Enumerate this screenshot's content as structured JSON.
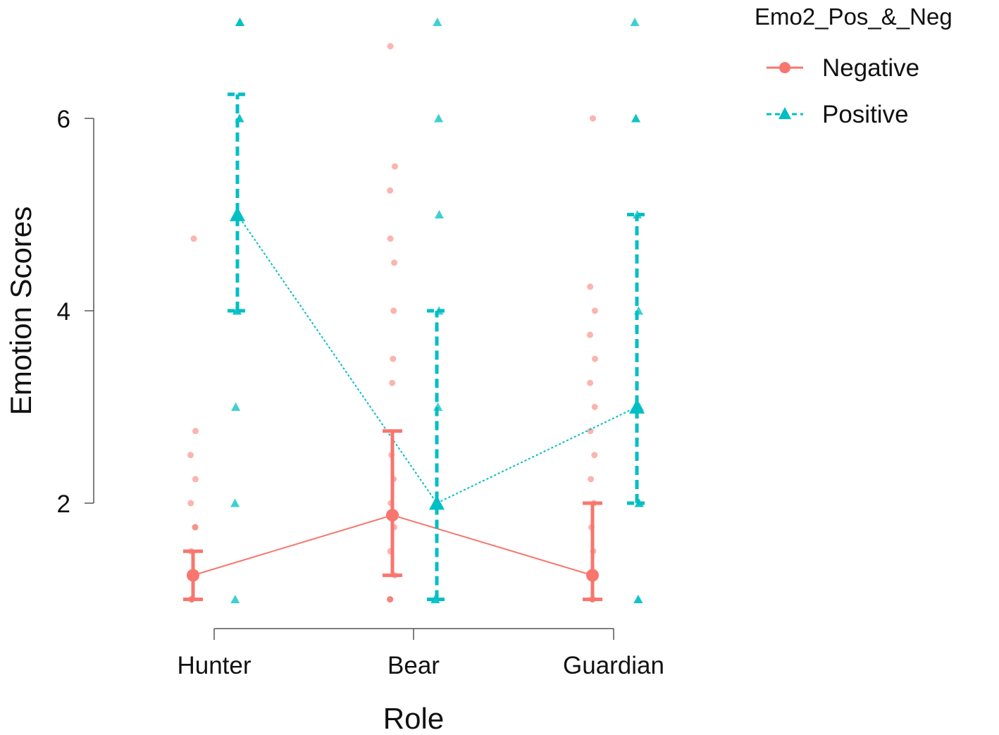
{
  "chart_data": {
    "type": "line",
    "xlabel": "Role",
    "ylabel": "Emotion Scores",
    "categories": [
      "Hunter",
      "Bear",
      "Guardian"
    ],
    "y_ticks": [
      "2",
      "4",
      "6"
    ],
    "ylim": [
      0.6,
      7.2
    ],
    "grid": false,
    "legend": {
      "title": "Emo2_Pos_&_Neg",
      "placement": "top-right"
    },
    "series": [
      {
        "name": "Negative",
        "color": "#F8766D",
        "marker": "circle",
        "line_style": "solid",
        "means": [
          1.25,
          1.875,
          1.25
        ],
        "ci_low": [
          1.0,
          1.25,
          1.0
        ],
        "ci_high": [
          1.5,
          2.75,
          2.0
        ],
        "raw": [
          [
            1,
            1,
            1,
            1,
            1.25,
            1.5,
            1.75,
            1.75,
            2,
            2.25,
            2.5,
            2.75,
            4.75
          ],
          [
            1,
            1,
            1,
            1.25,
            1.5,
            1.75,
            2,
            2.25,
            2.5,
            3.25,
            3.5,
            4,
            4.5,
            4.75,
            5.25,
            5.5,
            6.75
          ],
          [
            1,
            1,
            1,
            1.25,
            1.5,
            1.75,
            2,
            2.25,
            2.5,
            2.75,
            3,
            3.25,
            3.5,
            3.75,
            4,
            4.25,
            6
          ]
        ]
      },
      {
        "name": "Positive",
        "color": "#00BFC4",
        "marker": "triangle",
        "line_style": "dashed",
        "means": [
          5.0,
          2.0,
          3.0
        ],
        "ci_low": [
          4.0,
          1.0,
          2.0
        ],
        "ci_high": [
          6.25,
          4.0,
          5.0
        ],
        "raw": [
          [
            1,
            2,
            3,
            4,
            4,
            5,
            5,
            6,
            6,
            7,
            7,
            7
          ],
          [
            1,
            1,
            2,
            3,
            4,
            5,
            6,
            7
          ],
          [
            1,
            1,
            2,
            2,
            3,
            4,
            5,
            6,
            6,
            7
          ]
        ]
      }
    ]
  }
}
